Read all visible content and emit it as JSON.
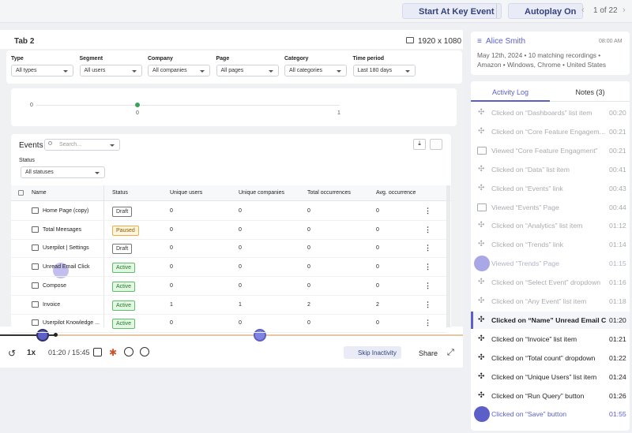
{
  "toolbar": {
    "start_key_event": "Start At Key Event",
    "autoplay": "Autoplay On",
    "pager": "1 of 22"
  },
  "player": {
    "tab": "Tab 2",
    "resolution": "1920 x 1080",
    "speed": "1x",
    "time": "01:20 / 15:45",
    "skip": "Skip Inactivity",
    "share": "Share"
  },
  "filters": [
    {
      "label": "Type",
      "value": "All types"
    },
    {
      "label": "Segment",
      "value": "All users"
    },
    {
      "label": "Company",
      "value": "All companies"
    },
    {
      "label": "Page",
      "value": "All pages"
    },
    {
      "label": "Category",
      "value": "All categories"
    },
    {
      "label": "Time period",
      "value": "Last 180 days"
    }
  ],
  "chart": {
    "y_label": "0",
    "x_ticks": [
      "0",
      "1"
    ]
  },
  "events": {
    "title": "Events",
    "search": "Search...",
    "status_label": "Status",
    "status_value": "All statuses",
    "columns": [
      "Name",
      "Status",
      "Unique users",
      "Unique companies",
      "Total occurrences",
      "Avg. occurrence"
    ],
    "rows": [
      {
        "name": "Home Page (copy)",
        "status": "Draft",
        "cells": [
          0,
          0,
          0,
          0
        ]
      },
      {
        "name": "Total Meesages",
        "status": "Paused",
        "cells": [
          0,
          0,
          0,
          0
        ]
      },
      {
        "name": "Userpilot | Settings",
        "status": "Draft",
        "cells": [
          0,
          0,
          0,
          0
        ]
      },
      {
        "name": "Unread Email Click",
        "status": "Active",
        "cells": [
          0,
          0,
          0,
          0
        ]
      },
      {
        "name": "Compose",
        "status": "Active",
        "cells": [
          0,
          0,
          0,
          0
        ]
      },
      {
        "name": "Invoice",
        "status": "Active",
        "cells": [
          1,
          1,
          2,
          2
        ]
      },
      {
        "name": "Userpilot Knowledge ...",
        "status": "Active",
        "cells": [
          0,
          0,
          0,
          0
        ]
      }
    ]
  },
  "user": {
    "name": "Alice Smith",
    "time": "08:00 AM",
    "details": "May 12th, 2024 • 10 matching recordings • Amazon • Windows, Chrome • United States"
  },
  "tabs": [
    "Activity Log",
    "Notes (3)"
  ],
  "activity_log": [
    {
      "text": "Clicked on “Dashboards” list item",
      "time": "00:20",
      "icon": "click",
      "state": "past"
    },
    {
      "text": "Clicked on “Core Feature Engagem...",
      "time": "00:21",
      "icon": "click",
      "state": "past"
    },
    {
      "text": "Viewed “Core Feature Engagment”",
      "time": "00:21",
      "icon": "view",
      "state": "past"
    },
    {
      "text": "Clicked on “Data” list item",
      "time": "00:41",
      "icon": "click",
      "state": "past"
    },
    {
      "text": "Clicked on “Events” link",
      "time": "00:43",
      "icon": "click",
      "state": "past"
    },
    {
      "text": "Viewed “Events” Page",
      "time": "00:44",
      "icon": "view",
      "state": "past"
    },
    {
      "text": "Clicked on “Analytics” list item",
      "time": "01:12",
      "icon": "click",
      "state": "past"
    },
    {
      "text": "Clicked on “Trends” link",
      "time": "01:14",
      "icon": "click",
      "state": "past"
    },
    {
      "text": "Viewed “Trends” Page",
      "time": "01:15",
      "icon": "view",
      "state": "hover"
    },
    {
      "text": "Clicked on “Select Event” dropdown",
      "time": "01:16",
      "icon": "click",
      "state": "past"
    },
    {
      "text": "Clicked on “Any Event” list item",
      "time": "01:18",
      "icon": "click",
      "state": "past"
    },
    {
      "text": "Clicked on “Name”  Unread Email C...",
      "time": "01:20",
      "icon": "click",
      "state": "current"
    },
    {
      "text": "Clicked on “Invoice” list item",
      "time": "01:21",
      "icon": "click",
      "state": "upcoming"
    },
    {
      "text": "Clicked on “Total count” dropdown",
      "time": "01:22",
      "icon": "click",
      "state": "upcoming"
    },
    {
      "text": "Clicked on “Unique Users” list item",
      "time": "01:24",
      "icon": "click",
      "state": "upcoming"
    },
    {
      "text": "Clicked on “Run Query” button",
      "time": "01:26",
      "icon": "click",
      "state": "upcoming"
    },
    {
      "text": "Clicked on “Save” button",
      "time": "01:55",
      "icon": "click",
      "state": "highlight"
    }
  ]
}
